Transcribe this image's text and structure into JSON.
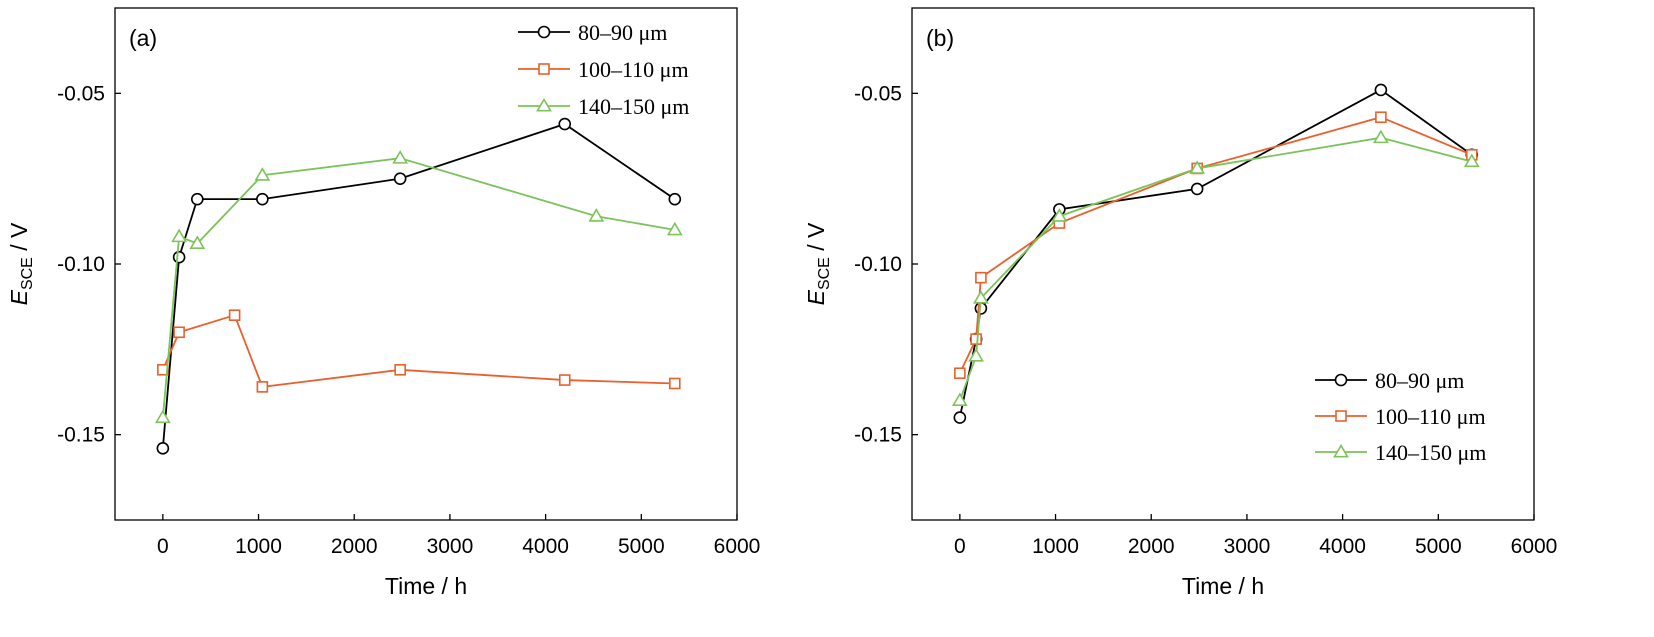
{
  "chart_data": [
    {
      "type": "line",
      "panel_label": "(a)",
      "xlabel": "Time / h",
      "ylabel": {
        "main": "E",
        "sub": "SCE",
        "unit": " / V"
      },
      "xlim": [
        -500,
        6000
      ],
      "ylim": [
        -0.175,
        -0.025
      ],
      "xticks": [
        0,
        1000,
        2000,
        3000,
        4000,
        5000,
        6000
      ],
      "xtick_labels": [
        "0",
        "1000",
        "2000",
        "3000",
        "4000",
        "5000",
        "6000"
      ],
      "yticks": [
        -0.05,
        -0.1,
        -0.15
      ],
      "ytick_labels": [
        "-0.05",
        "-0.10",
        "-0.15"
      ],
      "grid": false,
      "legend_position": "top-right",
      "series": [
        {
          "name": "80–90 μm",
          "color": "#000000",
          "marker": "circle",
          "x": [
            0,
            170,
            360,
            1040,
            2480,
            4200,
            5350
          ],
          "y": [
            -0.154,
            -0.098,
            -0.081,
            -0.081,
            -0.075,
            -0.059,
            -0.081
          ]
        },
        {
          "name": "100–110 μm",
          "color": "#e8602c",
          "marker": "square",
          "x": [
            0,
            170,
            750,
            1040,
            2480,
            4200,
            5350
          ],
          "y": [
            -0.131,
            -0.12,
            -0.115,
            -0.136,
            -0.131,
            -0.134,
            -0.135
          ]
        },
        {
          "name": "140–150 μm",
          "color": "#7cc35b",
          "marker": "triangle",
          "x": [
            0,
            170,
            360,
            1040,
            2480,
            4530,
            5350
          ],
          "y": [
            -0.145,
            -0.092,
            -0.094,
            -0.074,
            -0.069,
            -0.086,
            -0.09
          ]
        }
      ]
    },
    {
      "type": "line",
      "panel_label": "(b)",
      "xlabel": "Time / h",
      "ylabel": {
        "main": "E",
        "sub": "SCE",
        "unit": " / V"
      },
      "xlim": [
        -500,
        6000
      ],
      "ylim": [
        -0.175,
        -0.025
      ],
      "xticks": [
        0,
        1000,
        2000,
        3000,
        4000,
        5000,
        6000
      ],
      "xtick_labels": [
        "0",
        "1000",
        "2000",
        "3000",
        "4000",
        "5000",
        "6000"
      ],
      "yticks": [
        -0.05,
        -0.1,
        -0.15
      ],
      "ytick_labels": [
        "-0.05",
        "-0.10",
        "-0.15"
      ],
      "grid": false,
      "legend_position": "bottom-right",
      "series": [
        {
          "name": "80–90 μm",
          "color": "#000000",
          "marker": "circle",
          "x": [
            0,
            170,
            220,
            1040,
            2480,
            4400,
            5350
          ],
          "y": [
            -0.145,
            -0.122,
            -0.113,
            -0.084,
            -0.078,
            -0.049,
            -0.068
          ]
        },
        {
          "name": "100–110 μm",
          "color": "#e8602c",
          "marker": "square",
          "x": [
            0,
            170,
            220,
            1040,
            2480,
            4400,
            5350
          ],
          "y": [
            -0.132,
            -0.122,
            -0.104,
            -0.088,
            -0.072,
            -0.057,
            -0.068
          ]
        },
        {
          "name": "140–150 μm",
          "color": "#7cc35b",
          "marker": "triangle",
          "x": [
            0,
            170,
            220,
            1040,
            2480,
            4400,
            5350
          ],
          "y": [
            -0.14,
            -0.127,
            -0.11,
            -0.086,
            -0.072,
            -0.063,
            -0.07
          ]
        }
      ]
    }
  ]
}
